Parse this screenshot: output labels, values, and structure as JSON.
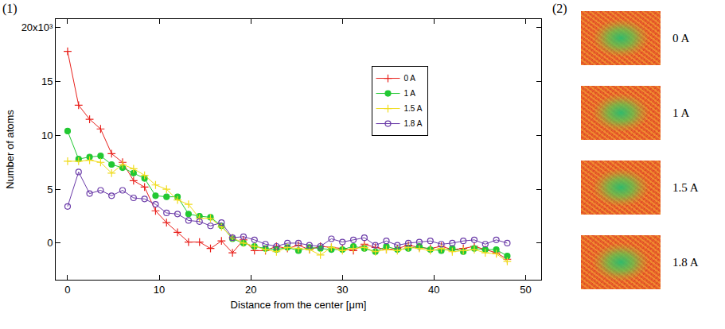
{
  "chart_data": {
    "type": "line",
    "panel_label": "(1)",
    "x_label": "Distance from the center [μm]",
    "y_label": "Number of atoms",
    "x": [
      0,
      1.2,
      2.4,
      3.6,
      4.8,
      6,
      7.2,
      8.4,
      9.6,
      10.8,
      12,
      13.2,
      14.4,
      15.6,
      16.8,
      18,
      19.2,
      20.4,
      21.6,
      22.8,
      24,
      25.2,
      26.4,
      27.6,
      28.8,
      30,
      31.2,
      32.4,
      33.6,
      34.8,
      36,
      37.2,
      38.4,
      39.6,
      40.8,
      42,
      43.2,
      44.4,
      45.6,
      46.8,
      48
    ],
    "series": [
      {
        "name": "0 A",
        "color": "#e8201b",
        "marker": "plus",
        "values": [
          17.8,
          12.8,
          11.5,
          10.6,
          8.3,
          7.5,
          5.8,
          5.2,
          3.0,
          1.9,
          1.0,
          0.1,
          0.1,
          -0.5,
          0.2,
          -0.9,
          0.3,
          -0.7,
          -0.7,
          -0.3,
          -0.5,
          -0.2,
          -0.6,
          -0.3,
          -0.4,
          -0.5,
          -0.7,
          -0.1,
          -0.4,
          -0.6,
          -0.5,
          -0.2,
          -0.4,
          -0.5,
          -0.3,
          -0.6,
          -0.5,
          -0.3,
          -0.6,
          -0.9,
          -1.5
        ]
      },
      {
        "name": "1 A",
        "color": "#22c832",
        "marker": "circle",
        "values": [
          10.4,
          7.8,
          8.0,
          8.1,
          7.3,
          7.0,
          6.5,
          6.0,
          4.4,
          4.3,
          4.3,
          2.7,
          2.5,
          2.4,
          1.6,
          0.4,
          0.0,
          -0.3,
          -0.5,
          -0.6,
          -0.4,
          -0.7,
          -0.4,
          -0.5,
          -0.6,
          -0.6,
          -0.3,
          -0.5,
          -0.8,
          -0.3,
          -0.6,
          -0.5,
          -0.3,
          -0.6,
          -0.7,
          -0.5,
          -0.8,
          -0.5,
          -0.6,
          -0.6,
          -1.2
        ]
      },
      {
        "name": "1.5 A",
        "color": "#f0dc1e",
        "marker": "plus",
        "values": [
          7.6,
          7.6,
          7.7,
          7.5,
          6.5,
          7.3,
          6.9,
          6.3,
          5.4,
          5.0,
          4.0,
          3.6,
          2.3,
          2.3,
          1.5,
          0.5,
          0.0,
          -0.3,
          -0.6,
          -0.8,
          -0.4,
          -0.5,
          -0.6,
          -1.1,
          -0.4,
          -0.7,
          -0.5,
          -0.4,
          -0.8,
          -0.6,
          -0.7,
          -0.4,
          -0.5,
          -0.7,
          -0.5,
          -0.8,
          -0.7,
          -0.6,
          -0.9,
          -1.0,
          -1.7
        ]
      },
      {
        "name": "1.8 A",
        "color": "#6a3aa8",
        "marker": "open_circle",
        "values": [
          3.4,
          6.6,
          4.6,
          4.9,
          4.4,
          4.9,
          4.2,
          4.1,
          3.6,
          2.8,
          2.7,
          2.1,
          2.0,
          1.6,
          1.9,
          0.5,
          0.6,
          0.3,
          -0.1,
          -0.3,
          0.0,
          0.0,
          -0.2,
          -0.3,
          0.4,
          0.1,
          0.3,
          0.5,
          -0.2,
          0.2,
          -0.2,
          0.0,
          0.1,
          0.2,
          -0.1,
          0.0,
          0.2,
          0.3,
          -0.1,
          0.3,
          0.0
        ]
      }
    ],
    "xlim": [
      -1.3,
      51.7
    ],
    "ylim": [
      -3.4,
      20.8
    ],
    "xticks": [
      0,
      10,
      20,
      30,
      40,
      50
    ],
    "yticks": [
      0,
      5,
      10,
      15,
      {
        "value": 20,
        "label": "20x10³"
      }
    ],
    "legend": "top",
    "grid": false
  },
  "images": {
    "panel_label": "(2)",
    "labels": [
      "0 A",
      "1 A",
      "1.5 A",
      "1.8 A"
    ]
  }
}
